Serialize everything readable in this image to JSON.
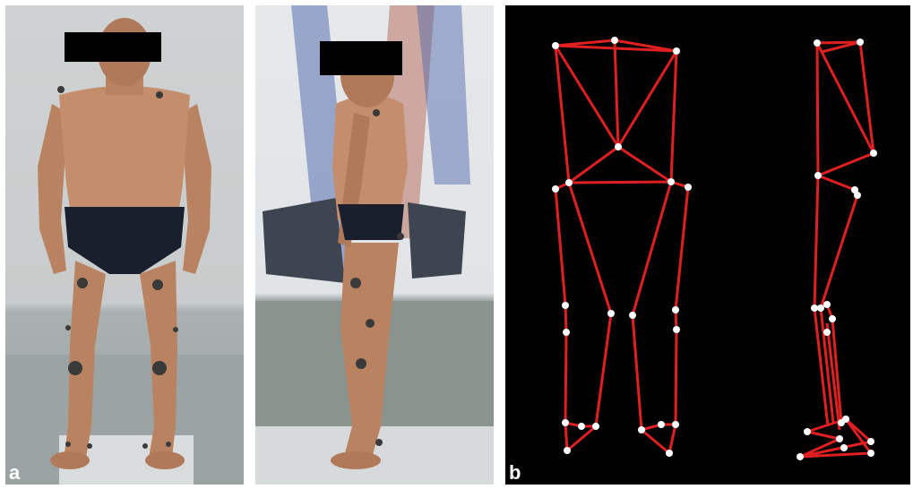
{
  "panels": {
    "a": {
      "letter": "a"
    },
    "b": {
      "letter": "b"
    }
  },
  "colors": {
    "skin": "#c08a68",
    "skin_shadow": "#8a5a40",
    "brief": "#1a1f2e",
    "censor_bar": "#000000",
    "marker": "#3a3a3a",
    "skeleton_line": "#e02020",
    "skeleton_point": "#ffffff",
    "skeleton_bg": "#000000"
  }
}
